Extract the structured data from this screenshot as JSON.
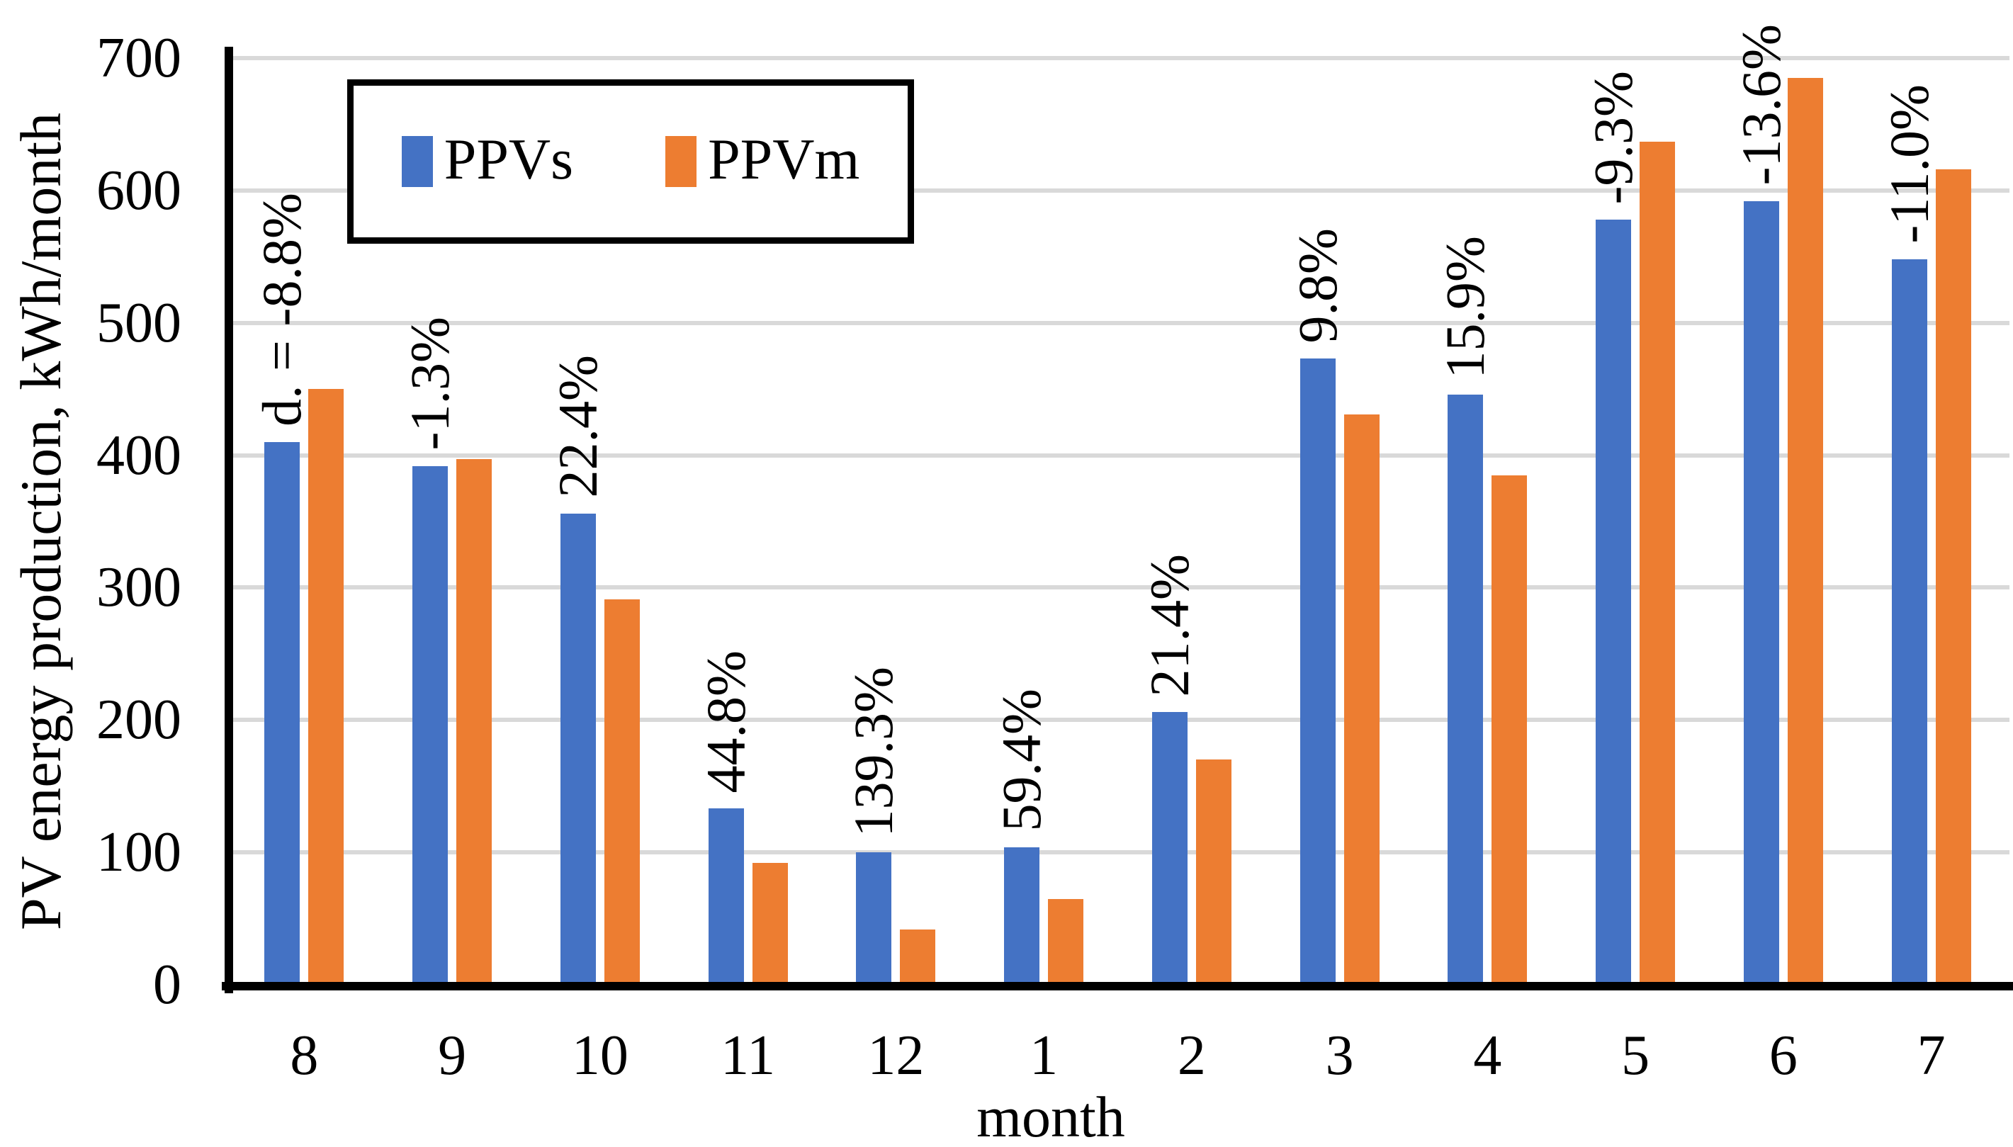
{
  "chart_data": {
    "type": "bar",
    "title": "",
    "xlabel": "month",
    "ylabel": "PV energy production, kWh/month",
    "ylim": [
      0,
      700
    ],
    "yticks": [
      0,
      100,
      200,
      300,
      400,
      500,
      600,
      700
    ],
    "grid": true,
    "legend_position": "top-left-inside",
    "categories": [
      "8",
      "9",
      "10",
      "11",
      "12",
      "1",
      "2",
      "3",
      "4",
      "5",
      "6",
      "7"
    ],
    "series": [
      {
        "name": "PPVs",
        "color": "#4472C4",
        "values": [
          410,
          392,
          356,
          133,
          100,
          104,
          206,
          473,
          446,
          578,
          592,
          548
        ]
      },
      {
        "name": "PPVm",
        "color": "#ED7D31",
        "values": [
          450,
          397,
          291,
          92,
          42,
          65,
          170,
          431,
          385,
          637,
          685,
          616
        ]
      }
    ],
    "annotations": [
      "d. = -8.8%",
      "-1.3%",
      "22.4%",
      "44.8%",
      "139.3%",
      "59.4%",
      "21.4%",
      "9.8%",
      "15.9%",
      "-9.3%",
      "-13.6%",
      "-11.0%"
    ]
  },
  "colors": {
    "ppvs": "#4472C4",
    "ppvm": "#ED7D31",
    "gridline": "#D9D9D9",
    "axis": "#000000",
    "text": "#000000",
    "background": "#FFFFFF"
  }
}
